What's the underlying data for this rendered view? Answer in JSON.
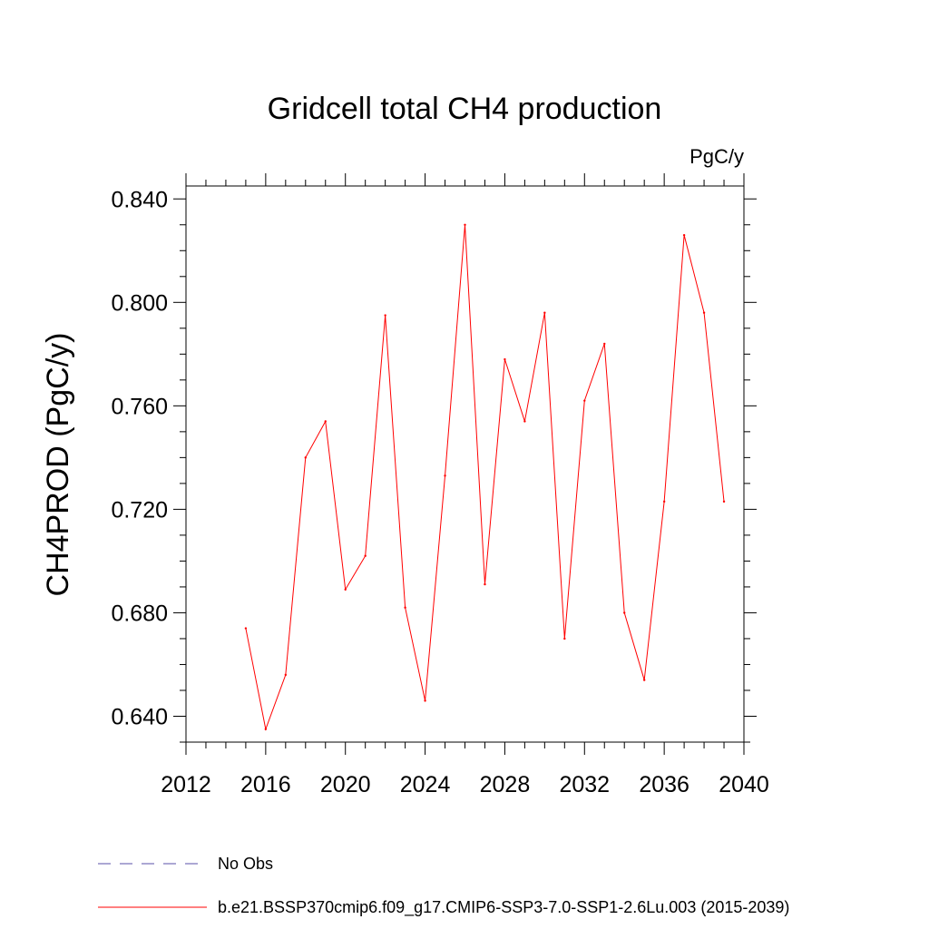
{
  "chart_data": {
    "type": "line",
    "title": "Gridcell total CH4 production",
    "units": "PgC/y",
    "ylabel": "CH4PROD  (PgC/y)",
    "xlabel": "",
    "xlim": [
      2012,
      2040
    ],
    "ylim": [
      0.63,
      0.845
    ],
    "x_ticks": [
      2012,
      2016,
      2020,
      2024,
      2028,
      2032,
      2036,
      2040
    ],
    "y_ticks": [
      0.64,
      0.68,
      0.72,
      0.76,
      0.8,
      0.84
    ],
    "x_tick_labels": [
      "2012",
      "2016",
      "2020",
      "2024",
      "2028",
      "2032",
      "2036",
      "2040"
    ],
    "y_tick_labels": [
      "0.640",
      "0.680",
      "0.720",
      "0.760",
      "0.800",
      "0.840"
    ],
    "grid": false,
    "legend_position": "bottom",
    "series": [
      {
        "name": "b.e21.BSSP370cmip6.f09_g17.CMIP6-SSP3-7.0-SSP1-2.6Lu.003 (2015-2039)",
        "color": "#ff0000",
        "style": "solid",
        "x": [
          2015,
          2016,
          2017,
          2018,
          2019,
          2020,
          2021,
          2022,
          2023,
          2024,
          2025,
          2026,
          2027,
          2028,
          2029,
          2030,
          2031,
          2032,
          2033,
          2034,
          2035,
          2036,
          2037,
          2038,
          2039
        ],
        "y": [
          0.674,
          0.635,
          0.656,
          0.74,
          0.754,
          0.689,
          0.702,
          0.795,
          0.682,
          0.646,
          0.733,
          0.83,
          0.691,
          0.778,
          0.754,
          0.796,
          0.67,
          0.762,
          0.784,
          0.68,
          0.654,
          0.723,
          0.826,
          0.796,
          0.723
        ]
      }
    ],
    "legend": [
      {
        "label": "No Obs",
        "color": "#5a4fa8",
        "style": "dashed"
      },
      {
        "label": "b.e21.BSSP370cmip6.f09_g17.CMIP6-SSP3-7.0-SSP1-2.6Lu.003 (2015-2039)",
        "color": "#ff0000",
        "style": "solid"
      }
    ]
  }
}
